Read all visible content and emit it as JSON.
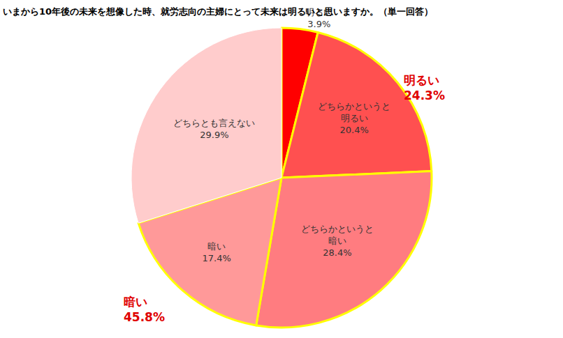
{
  "chart_data": {
    "type": "pie",
    "title": "いまから10年後の未来を想像した時、就労志向の主婦にとって未来は明るいと思いますか。（単一回答）",
    "categories": [
      "明るい",
      "どちらかというと\n明るい",
      "どちらかというと\n暗い",
      "暗い",
      "どちらとも言えない"
    ],
    "values": [
      3.9,
      20.4,
      28.4,
      17.4,
      29.9
    ],
    "value_labels": [
      "3.9%",
      "20.4%",
      "28.4%",
      "17.4%",
      "29.9%"
    ],
    "colors": [
      "#ff0000",
      "#ff5050",
      "#ff7c80",
      "#ff9999",
      "#ffcccc"
    ],
    "data_labels": true,
    "groups": [
      {
        "label": "明るい",
        "value": 24.3,
        "value_label": "24.3%",
        "color": "#e00000"
      },
      {
        "label": "暗い",
        "value": 45.8,
        "value_label": "45.8%",
        "color": "#e00000"
      }
    ]
  }
}
